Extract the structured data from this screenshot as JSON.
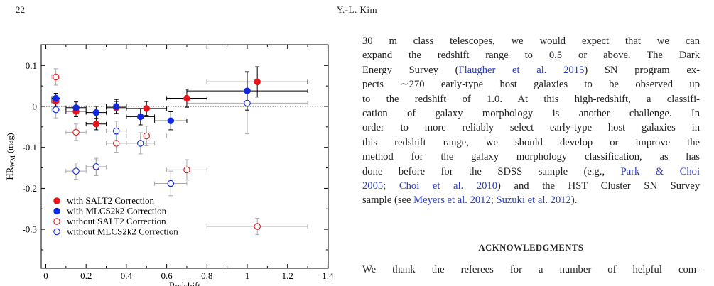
{
  "header": {
    "page_number": "22",
    "running_head": "Y.-L. Kim"
  },
  "chart_data": {
    "type": "scatter",
    "xlabel": "Redshift",
    "ylabel_main": "HR",
    "ylabel_sub": "WM",
    "ylabel_unit": "(mag)",
    "xlim": [
      0,
      1.4
    ],
    "ylim": [
      -0.37,
      0.14
    ],
    "x_ticks": [
      0,
      0.2,
      0.4,
      0.6,
      0.8,
      1,
      1.2,
      1.4
    ],
    "x_tick_labels": [
      "0",
      "0.2",
      "0.4",
      "0.6",
      "0.8",
      "1",
      "1.2",
      "1.4"
    ],
    "y_ticks": [
      0.1,
      0,
      -0.1,
      -0.2,
      -0.3
    ],
    "y_tick_labels": [
      "0.1",
      "0",
      "-0.1",
      "-0.2",
      "-0.3"
    ],
    "reference_line": 0,
    "legend_position": "bottom-left",
    "series": [
      {
        "name": "with SALT2 Correction",
        "color": "#e8141b",
        "filled": true,
        "marker": "circle",
        "points": [
          {
            "x": 0.05,
            "y": 0.013,
            "xerr": 0.02,
            "yerr": 0.012
          },
          {
            "x": 0.15,
            "y": -0.012,
            "xerr": 0.05,
            "yerr": 0.013
          },
          {
            "x": 0.25,
            "y": -0.043,
            "xerr": 0.05,
            "yerr": 0.014
          },
          {
            "x": 0.35,
            "y": -0.003,
            "xerr": 0.05,
            "yerr": 0.015
          },
          {
            "x": 0.5,
            "y": -0.005,
            "xerr": 0.1,
            "yerr": 0.017
          },
          {
            "x": 0.7,
            "y": 0.02,
            "xerr": 0.1,
            "yerr": 0.022
          },
          {
            "x": 1.05,
            "y": 0.06,
            "xerr": 0.25,
            "yerr": 0.037
          }
        ]
      },
      {
        "name": "with MLCS2k2 Correction",
        "color": "#1029e0",
        "filled": true,
        "marker": "circle",
        "points": [
          {
            "x": 0.05,
            "y": 0.02,
            "xerr": 0.02,
            "yerr": 0.012
          },
          {
            "x": 0.15,
            "y": -0.003,
            "xerr": 0.05,
            "yerr": 0.014
          },
          {
            "x": 0.25,
            "y": -0.015,
            "xerr": 0.05,
            "yerr": 0.015
          },
          {
            "x": 0.35,
            "y": 0.0,
            "xerr": 0.05,
            "yerr": 0.017
          },
          {
            "x": 0.47,
            "y": -0.025,
            "xerr": 0.07,
            "yerr": 0.02
          },
          {
            "x": 0.62,
            "y": -0.035,
            "xerr": 0.08,
            "yerr": 0.022
          },
          {
            "x": 1.0,
            "y": 0.038,
            "xerr": 0.3,
            "yerr": 0.047
          }
        ]
      },
      {
        "name": "without SALT2 Correction",
        "color": "#e8141b",
        "filled": false,
        "marker": "circle",
        "points": [
          {
            "x": 0.05,
            "y": 0.072,
            "xerr": 0.02,
            "yerr": 0.02
          },
          {
            "x": 0.15,
            "y": -0.063,
            "xerr": 0.05,
            "yerr": 0.02
          },
          {
            "x": 0.25,
            "y": -0.148,
            "xerr": 0.05,
            "yerr": 0.02
          },
          {
            "x": 0.35,
            "y": -0.09,
            "xerr": 0.05,
            "yerr": 0.022
          },
          {
            "x": 0.5,
            "y": -0.072,
            "xerr": 0.1,
            "yerr": 0.024
          },
          {
            "x": 0.7,
            "y": -0.155,
            "xerr": 0.1,
            "yerr": 0.025
          },
          {
            "x": 1.05,
            "y": -0.293,
            "xerr": 0.25,
            "yerr": 0.02
          }
        ]
      },
      {
        "name": "without MLCS2k2 Correction",
        "color": "#1029e0",
        "filled": false,
        "marker": "circle",
        "points": [
          {
            "x": 0.05,
            "y": -0.008,
            "xerr": 0.02,
            "yerr": 0.02
          },
          {
            "x": 0.15,
            "y": -0.158,
            "xerr": 0.05,
            "yerr": 0.02
          },
          {
            "x": 0.25,
            "y": -0.147,
            "xerr": 0.05,
            "yerr": 0.022
          },
          {
            "x": 0.35,
            "y": -0.06,
            "xerr": 0.05,
            "yerr": 0.024
          },
          {
            "x": 0.47,
            "y": -0.09,
            "xerr": 0.07,
            "yerr": 0.026
          },
          {
            "x": 0.62,
            "y": -0.188,
            "xerr": 0.08,
            "yerr": 0.03
          },
          {
            "x": 1.0,
            "y": 0.008,
            "xerr": 0.3,
            "yerr": 0.075
          }
        ]
      }
    ]
  },
  "body": {
    "lines": [
      [
        {
          "t": "30 m class telescopes, we would expect that we can"
        }
      ],
      [
        {
          "t": "expand the redshift range to 0.5 or above.  The Dark"
        }
      ],
      [
        {
          "t": "Energy Survey ("
        },
        {
          "t": "Flaugher et al. 2015",
          "cite": true
        },
        {
          "t": ") SN program ex-"
        }
      ],
      [
        {
          "t": "pects ∼270 early-type host galaxies to be observed up"
        }
      ],
      [
        {
          "t": "to the redshift of 1.0.  At this high-redshift, a classifi-"
        }
      ],
      [
        {
          "t": "cation of galaxy morphology is another challenge.  In"
        }
      ],
      [
        {
          "t": "order to more reliably select early-type host galaxies in"
        }
      ],
      [
        {
          "t": "this redshift range, we should develop or improve the"
        }
      ],
      [
        {
          "t": "method for the galaxy morphology classification, as has"
        }
      ],
      [
        {
          "t": "done before for the SDSS sample (e.g., "
        },
        {
          "t": "Park & Choi",
          "cite": true
        }
      ],
      [
        {
          "t": "2005",
          "cite": true
        },
        {
          "t": "; "
        },
        {
          "t": "Choi et al. 2010",
          "cite": true
        },
        {
          "t": ") and the HST Cluster SN Survey"
        }
      ],
      [
        {
          "t": "sample (see "
        },
        {
          "t": "Meyers et al. 2012",
          "cite": true
        },
        {
          "t": "; "
        },
        {
          "t": "Suzuki et al. 2012",
          "cite": true
        },
        {
          "t": ")."
        }
      ]
    ],
    "ack_heading": "ACKNOWLEDGMENTS",
    "ack_first_line": "We thank the referees for a number of helpful com-"
  }
}
